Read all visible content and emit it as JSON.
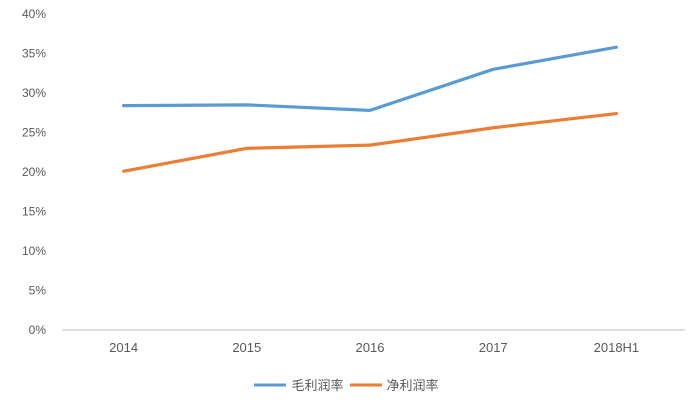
{
  "chart_data": {
    "type": "line",
    "categories": [
      "2014",
      "2015",
      "2016",
      "2017",
      "2018H1"
    ],
    "series": [
      {
        "name": "毛利润率",
        "color": "#5B9BD5",
        "values": [
          28.4,
          28.5,
          27.8,
          33.0,
          35.8
        ]
      },
      {
        "name": "净利润率",
        "color": "#ED7D31",
        "values": [
          20.1,
          23.0,
          23.4,
          25.6,
          27.4
        ]
      }
    ],
    "title": "",
    "xlabel": "",
    "ylabel": "",
    "ylim": [
      0,
      40
    ],
    "ytick_step": 5,
    "ytick_suffix": "%",
    "grid": false,
    "legend_position": "bottom"
  },
  "style": {
    "axis_text_color": "#595959",
    "axis_line_color": "#BFBFBF",
    "background": "#FFFFFF",
    "line_width": 3.2
  }
}
